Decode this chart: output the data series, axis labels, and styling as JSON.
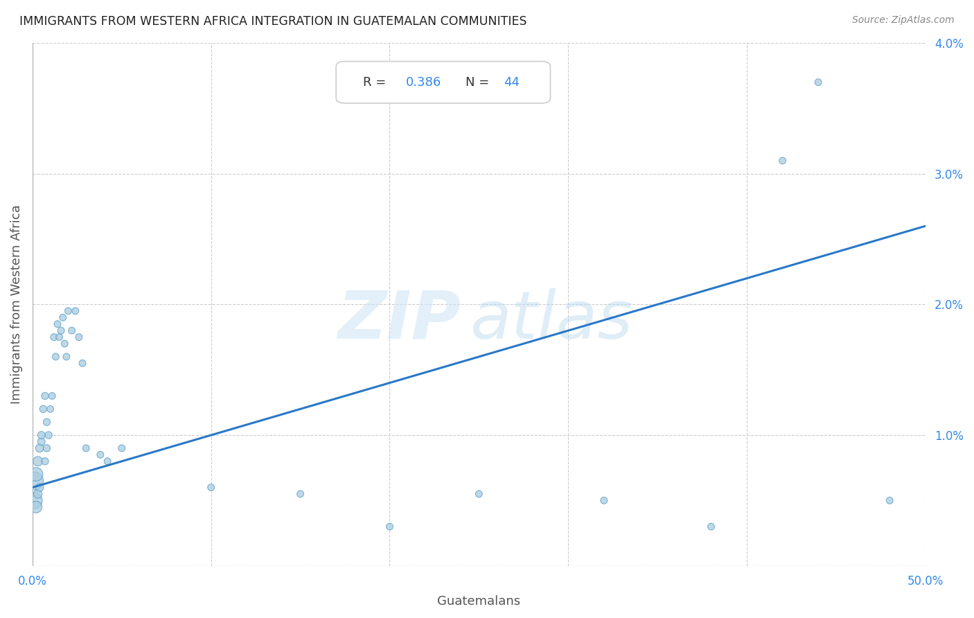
{
  "title": "IMMIGRANTS FROM WESTERN AFRICA INTEGRATION IN GUATEMALAN COMMUNITIES",
  "source": "Source: ZipAtlas.com",
  "xlabel": "Guatemalans",
  "ylabel": "Immigrants from Western Africa",
  "xlim": [
    0,
    0.5
  ],
  "ylim": [
    0,
    0.04
  ],
  "xtick_vals": [
    0.0,
    0.1,
    0.2,
    0.3,
    0.4,
    0.5
  ],
  "ytick_vals": [
    0.0,
    0.01,
    0.02,
    0.03,
    0.04
  ],
  "R": 0.386,
  "N": 44,
  "scatter_color": "#a8cce0",
  "scatter_edge_color": "#5a9dc5",
  "line_color": "#2878c8",
  "line_x0": 0.0,
  "line_y0": 0.006,
  "line_x1": 0.5,
  "line_y1": 0.026,
  "scatter_x": [
    0.001,
    0.001,
    0.002,
    0.002,
    0.003,
    0.003,
    0.004,
    0.004,
    0.005,
    0.005,
    0.006,
    0.007,
    0.007,
    0.008,
    0.008,
    0.009,
    0.01,
    0.011,
    0.012,
    0.013,
    0.014,
    0.015,
    0.016,
    0.017,
    0.018,
    0.019,
    0.02,
    0.022,
    0.024,
    0.026,
    0.028,
    0.03,
    0.038,
    0.042,
    0.05,
    0.1,
    0.15,
    0.2,
    0.25,
    0.32,
    0.38,
    0.42,
    0.44,
    0.48
  ],
  "scatter_y": [
    0.0065,
    0.005,
    0.007,
    0.0045,
    0.008,
    0.0055,
    0.009,
    0.006,
    0.0095,
    0.01,
    0.012,
    0.008,
    0.013,
    0.009,
    0.011,
    0.01,
    0.012,
    0.013,
    0.0175,
    0.016,
    0.0185,
    0.0175,
    0.018,
    0.019,
    0.017,
    0.016,
    0.0195,
    0.018,
    0.0195,
    0.0175,
    0.0155,
    0.009,
    0.0085,
    0.008,
    0.009,
    0.006,
    0.0055,
    0.003,
    0.0055,
    0.005,
    0.003,
    0.031,
    0.037,
    0.005
  ],
  "scatter_sizes": [
    350,
    280,
    200,
    150,
    100,
    80,
    70,
    70,
    60,
    60,
    55,
    55,
    55,
    55,
    55,
    55,
    50,
    50,
    50,
    50,
    50,
    50,
    50,
    50,
    50,
    50,
    50,
    50,
    50,
    50,
    50,
    50,
    50,
    50,
    50,
    50,
    50,
    50,
    50,
    50,
    50,
    50,
    50,
    50
  ]
}
